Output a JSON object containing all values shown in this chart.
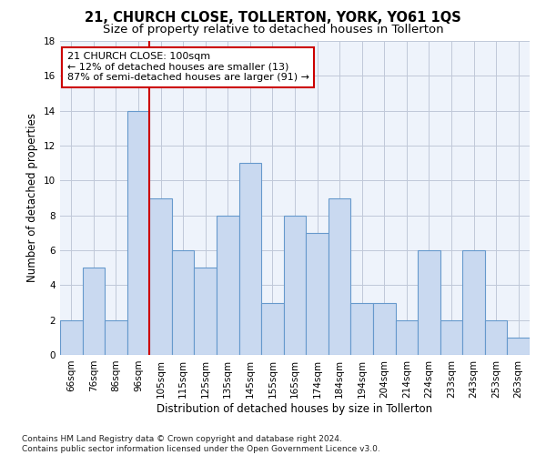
{
  "title": "21, CHURCH CLOSE, TOLLERTON, YORK, YO61 1QS",
  "subtitle": "Size of property relative to detached houses in Tollerton",
  "xlabel": "Distribution of detached houses by size in Tollerton",
  "ylabel": "Number of detached properties",
  "bar_labels": [
    "66sqm",
    "76sqm",
    "86sqm",
    "96sqm",
    "105sqm",
    "115sqm",
    "125sqm",
    "135sqm",
    "145sqm",
    "155sqm",
    "165sqm",
    "174sqm",
    "184sqm",
    "194sqm",
    "204sqm",
    "214sqm",
    "224sqm",
    "233sqm",
    "243sqm",
    "253sqm",
    "263sqm"
  ],
  "bar_values": [
    2,
    5,
    2,
    14,
    9,
    6,
    5,
    8,
    11,
    3,
    8,
    7,
    9,
    3,
    3,
    2,
    6,
    2,
    6,
    2,
    1
  ],
  "bar_color": "#c9d9f0",
  "bar_edgecolor": "#6699cc",
  "vline_bin_index": 3,
  "annotation_text": "21 CHURCH CLOSE: 100sqm\n← 12% of detached houses are smaller (13)\n87% of semi-detached houses are larger (91) →",
  "annotation_box_color": "#ffffff",
  "annotation_box_edgecolor": "#cc0000",
  "vline_color": "#cc0000",
  "background_color": "#ffffff",
  "plot_bg_color": "#eef3fb",
  "grid_color": "#c0c8d8",
  "ylim": [
    0,
    18
  ],
  "yticks": [
    0,
    2,
    4,
    6,
    8,
    10,
    12,
    14,
    16,
    18
  ],
  "footer": "Contains HM Land Registry data © Crown copyright and database right 2024.\nContains public sector information licensed under the Open Government Licence v3.0.",
  "title_fontsize": 10.5,
  "subtitle_fontsize": 9.5,
  "xlabel_fontsize": 8.5,
  "ylabel_fontsize": 8.5,
  "tick_fontsize": 7.5,
  "annotation_fontsize": 8,
  "footer_fontsize": 6.5
}
